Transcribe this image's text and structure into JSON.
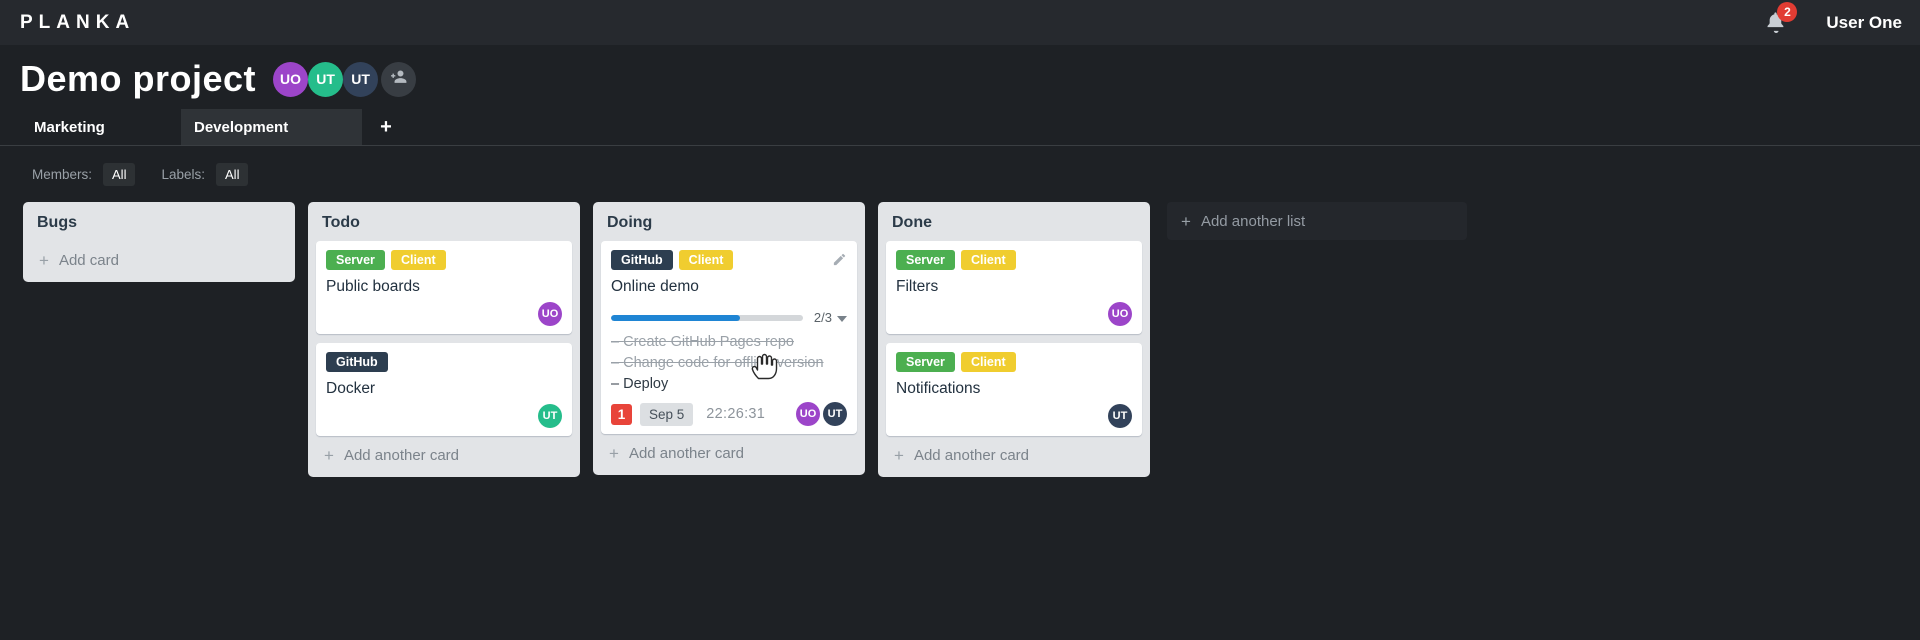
{
  "app": {
    "logo": "PLANKA",
    "user_name": "User One",
    "notifications_count": "2"
  },
  "icons": {
    "plus": "+"
  },
  "project": {
    "title": "Demo project",
    "members": [
      {
        "initials": "UO",
        "color_key": "purple"
      },
      {
        "initials": "UT",
        "color_key": "teal"
      },
      {
        "initials": "UT",
        "color_key": "navy"
      }
    ]
  },
  "tabs": {
    "items": [
      {
        "label": "Marketing",
        "active": false
      },
      {
        "label": "Development",
        "active": true
      }
    ]
  },
  "filters": {
    "members_label": "Members:",
    "members_value": "All",
    "labels_label": "Labels:",
    "labels_value": "All"
  },
  "board": {
    "add_list_label": "Add another list",
    "lists": [
      {
        "name": "Bugs",
        "add_label": "Add card",
        "cards": []
      },
      {
        "name": "Todo",
        "add_label": "Add another card",
        "cards": [
          {
            "title": "Public boards",
            "labels": [
              "Server",
              "Client"
            ],
            "members": [
              {
                "initials": "UO",
                "color_key": "purple"
              }
            ]
          },
          {
            "title": "Docker",
            "labels": [
              "GitHub"
            ],
            "members": [
              {
                "initials": "UT",
                "color_key": "teal"
              }
            ]
          }
        ]
      },
      {
        "name": "Doing",
        "add_label": "Add another card",
        "cards": [
          {
            "title": "Online demo",
            "labels": [
              "GitHub",
              "Client"
            ],
            "editable": true,
            "progress": {
              "display": "2/3",
              "percent": 67
            },
            "tasks": [
              {
                "text": "Create GitHub Pages repo",
                "done": true
              },
              {
                "text": "Change code for offline version",
                "done": true
              },
              {
                "text": "Deploy",
                "done": false
              }
            ],
            "badges": {
              "notifications": "1",
              "due_date": "Sep 5",
              "timer": "22:26:31"
            },
            "members": [
              {
                "initials": "UO",
                "color_key": "purple"
              },
              {
                "initials": "UT",
                "color_key": "navy"
              }
            ]
          }
        ]
      },
      {
        "name": "Done",
        "add_label": "Add another card",
        "cards": [
          {
            "title": "Filters",
            "labels": [
              "Server",
              "Client"
            ],
            "members": [
              {
                "initials": "UO",
                "color_key": "purple"
              }
            ]
          },
          {
            "title": "Notifications",
            "labels": [
              "Server",
              "Client"
            ],
            "members": [
              {
                "initials": "UT",
                "color_key": "navy"
              }
            ]
          }
        ]
      }
    ]
  },
  "colors": {
    "label": {
      "Server": "#4caf50",
      "Client": "#f0cd2f",
      "GitHub": "#2d3e50"
    },
    "avatar": {
      "purple": "#9c45c9",
      "teal": "#25bd8b",
      "navy": "#32425a"
    },
    "accent_blue": "#1f85d4",
    "alert_red": "#e8443a"
  }
}
